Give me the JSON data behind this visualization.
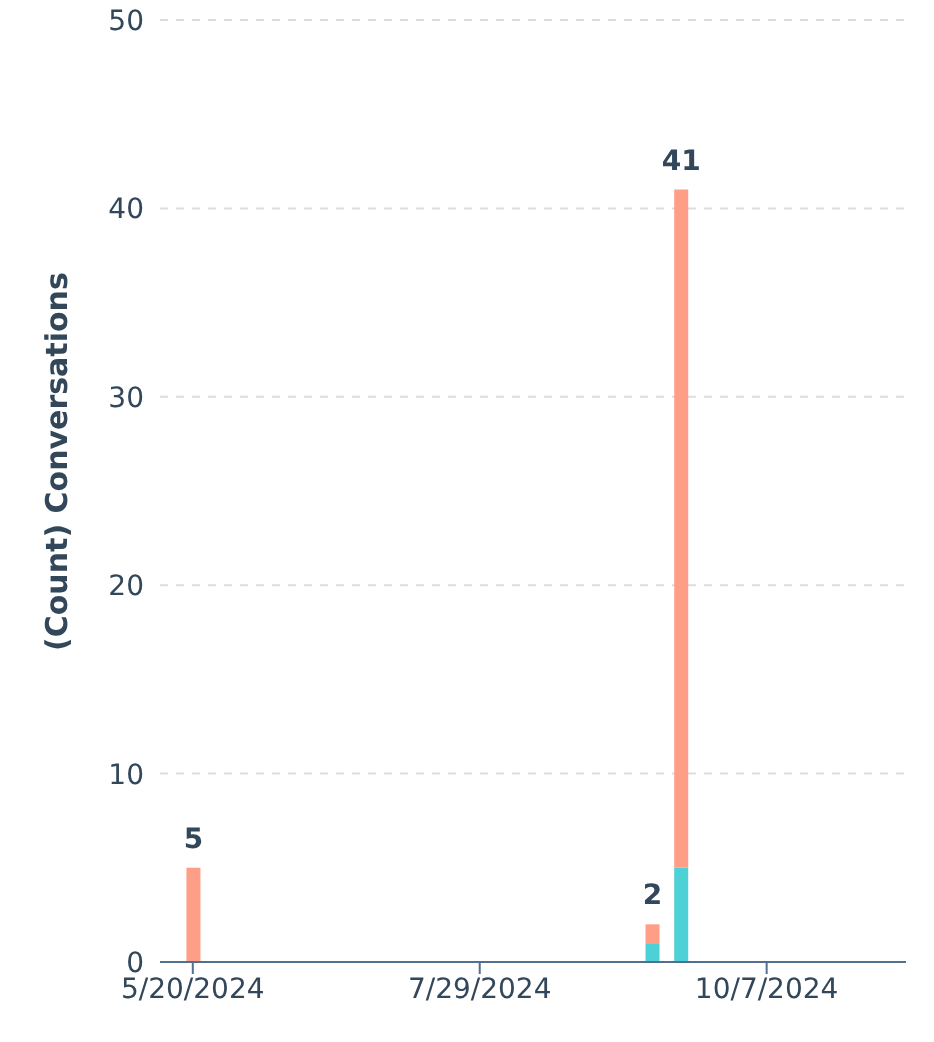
{
  "chart_data": {
    "type": "bar",
    "stacked": true,
    "ylabel": "(Count) Conversations",
    "x": [
      "2024-05-20",
      "2024-09-09",
      "2024-09-16"
    ],
    "series": [
      {
        "color": "#4dd0d6",
        "values": [
          0,
          1,
          5
        ]
      },
      {
        "color": "#ff9e86",
        "values": [
          5,
          1,
          36
        ]
      }
    ],
    "totals": [
      "5",
      "2",
      "41"
    ],
    "xlim": [
      "2024-05-12",
      "2024-11-10"
    ],
    "xticks": [
      {
        "value": "2024-05-20",
        "label": "5/20/2024"
      },
      {
        "value": "2024-07-29",
        "label": "7/29/2024"
      },
      {
        "value": "2024-10-07",
        "label": "10/7/2024"
      }
    ],
    "ylim": [
      0,
      50
    ],
    "yticks": [
      0,
      10,
      20,
      30,
      40,
      50
    ],
    "grid": "y",
    "legend": false
  }
}
